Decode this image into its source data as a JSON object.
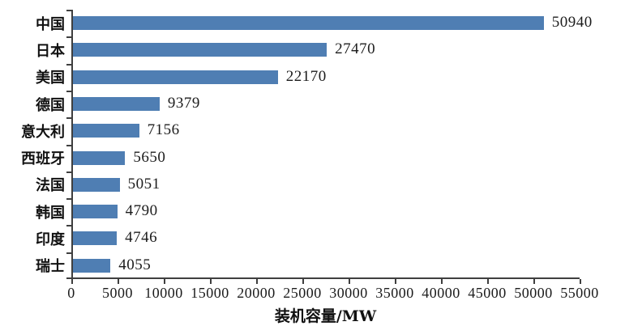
{
  "chart_data": {
    "type": "bar",
    "orientation": "horizontal",
    "title": "",
    "categories": [
      "中国",
      "日本",
      "美国",
      "德国",
      "意大利",
      "西班牙",
      "法国",
      "韩国",
      "印度",
      "瑞士"
    ],
    "values": [
      50940,
      27470,
      22170,
      9379,
      7156,
      5650,
      5051,
      4790,
      4746,
      4055
    ],
    "value_labels": [
      "50940",
      "27470",
      "22170",
      "9379",
      "7156",
      "5650",
      "5051",
      "4790",
      "4746",
      "4055"
    ],
    "xlabel": "装机容量/MW",
    "ylabel": "",
    "xlim": [
      0,
      55000
    ],
    "xticks": [
      0,
      5000,
      10000,
      15000,
      20000,
      25000,
      30000,
      35000,
      40000,
      45000,
      50000,
      55000
    ],
    "xtick_labels": [
      "0",
      "5000",
      "10000",
      "15000",
      "20000",
      "25000",
      "30000",
      "35000",
      "40000",
      "45000",
      "50000",
      "55000"
    ],
    "grid": false,
    "legend": false,
    "colors": {
      "bar": "#4f7eb3",
      "axis": "#3f3f3f",
      "text": "#1c1c1c"
    }
  }
}
